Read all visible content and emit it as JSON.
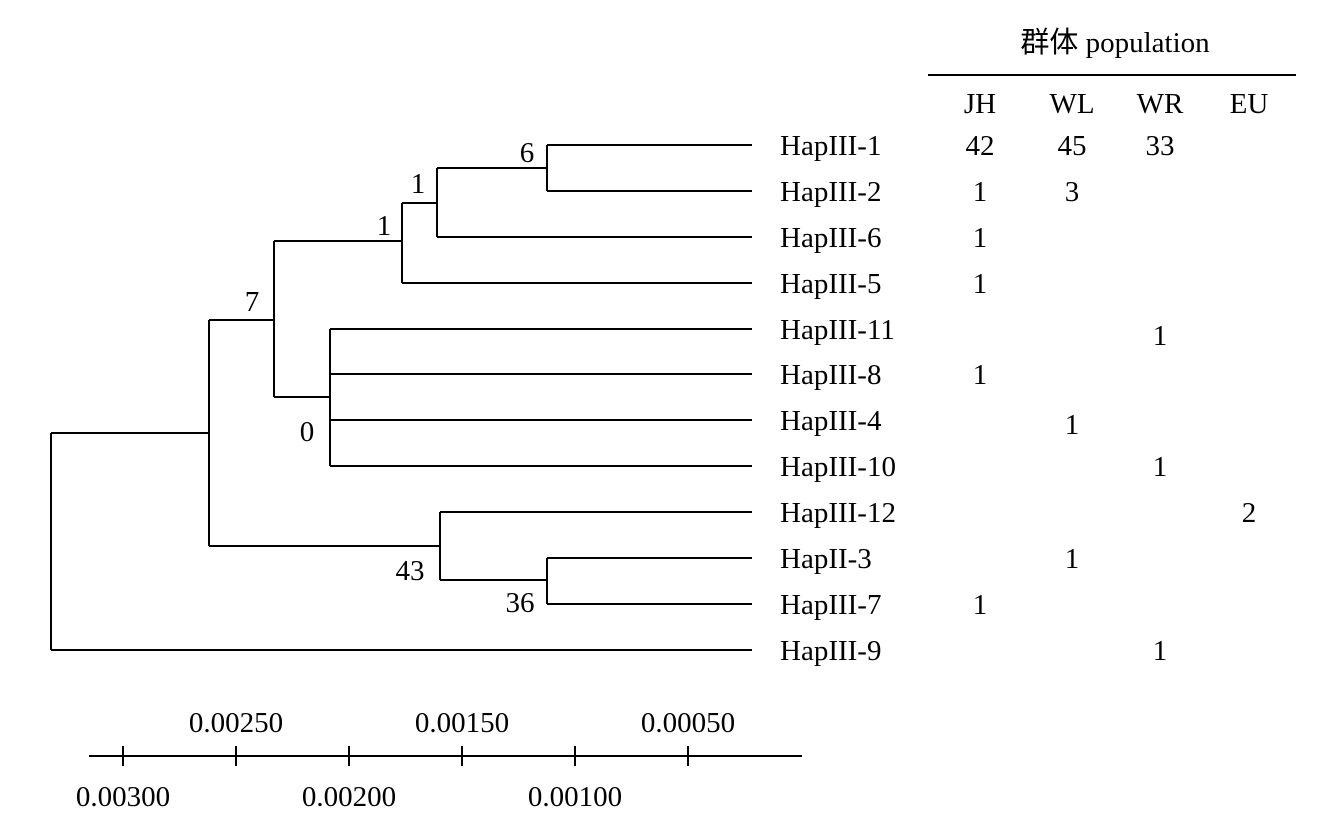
{
  "header": {
    "title": "群体 population",
    "columns": [
      "JH",
      "WL",
      "WR",
      "EU"
    ]
  },
  "tree": {
    "bootstrap": {
      "n6": "6",
      "n1a": "1",
      "n1b": "1",
      "n7": "7",
      "n0": "0",
      "n43": "43",
      "n36": "36"
    },
    "leaves": [
      {
        "name": "HapIII-1",
        "counts": [
          "42",
          "45",
          "33",
          ""
        ]
      },
      {
        "name": "HapIII-2",
        "counts": [
          "1",
          "3",
          "",
          ""
        ]
      },
      {
        "name": "HapIII-6",
        "counts": [
          "1",
          "",
          "",
          ""
        ]
      },
      {
        "name": "HapIII-5",
        "counts": [
          "1",
          "",
          "",
          ""
        ]
      },
      {
        "name": "HapIII-11",
        "counts": [
          "",
          "",
          "1",
          ""
        ]
      },
      {
        "name": "HapIII-8",
        "counts": [
          "1",
          "",
          "",
          ""
        ]
      },
      {
        "name": "HapIII-4",
        "counts": [
          "",
          "1",
          "",
          ""
        ]
      },
      {
        "name": "HapIII-10",
        "counts": [
          "",
          "",
          "1",
          ""
        ]
      },
      {
        "name": "HapIII-12",
        "counts": [
          "",
          "",
          "",
          "2"
        ]
      },
      {
        "name": "HapII-3",
        "counts": [
          "",
          "1",
          "",
          ""
        ]
      },
      {
        "name": "HapIII-7",
        "counts": [
          "1",
          "",
          "",
          ""
        ]
      },
      {
        "name": "HapIII-9",
        "counts": [
          "",
          "",
          "1",
          ""
        ]
      }
    ]
  },
  "scale": {
    "upper_labels": [
      "0.00250",
      "0.00150",
      "0.00050"
    ],
    "lower_labels": [
      "0.00300",
      "0.00200",
      "0.00100"
    ]
  }
}
